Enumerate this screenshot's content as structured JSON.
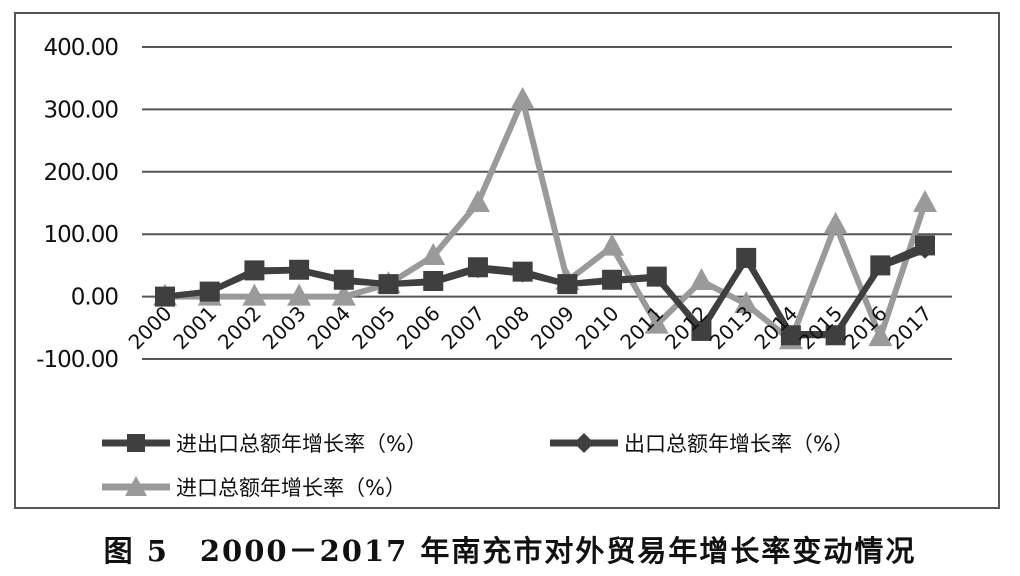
{
  "chart_data": {
    "type": "line",
    "categories": [
      "2000",
      "2001",
      "2002",
      "2003",
      "2004",
      "2005",
      "2006",
      "2007",
      "2008",
      "2009",
      "2010",
      "2011",
      "2012",
      "2013",
      "2014",
      "2015",
      "2016",
      "2017"
    ],
    "ylim": [
      -100,
      400
    ],
    "yticks": [
      "400.00",
      "300.00",
      "200.00",
      "100.00",
      "0.00",
      "-100.00"
    ],
    "ytick_values": [
      400,
      300,
      200,
      100,
      0,
      -100
    ],
    "grid": "horizontal",
    "legend_position": "bottom",
    "series": [
      {
        "name": "进出口总额年增长率（%）",
        "marker": "square",
        "color": "#3f3f3f",
        "values": [
          0,
          8,
          42,
          43,
          27,
          20,
          25,
          47,
          40,
          20,
          27,
          32,
          -55,
          62,
          -62,
          -62,
          50,
          82
        ]
      },
      {
        "name": "出口总额年增长率（%）",
        "marker": "diamond",
        "color": "#3f3f3f",
        "values": [
          0,
          8,
          40,
          42,
          25,
          20,
          23,
          44,
          37,
          20,
          25,
          30,
          -52,
          60,
          -60,
          -60,
          48,
          75
        ]
      },
      {
        "name": "进口总额年增长率（%）",
        "marker": "triangle",
        "color": "#9a9a9a",
        "values": [
          0,
          0,
          0,
          0,
          0,
          20,
          65,
          150,
          315,
          25,
          80,
          -45,
          25,
          -12,
          -70,
          115,
          -65,
          150
        ]
      }
    ]
  },
  "caption": "图 5　2000－2017 年南充市对外贸易年增长率变动情况"
}
